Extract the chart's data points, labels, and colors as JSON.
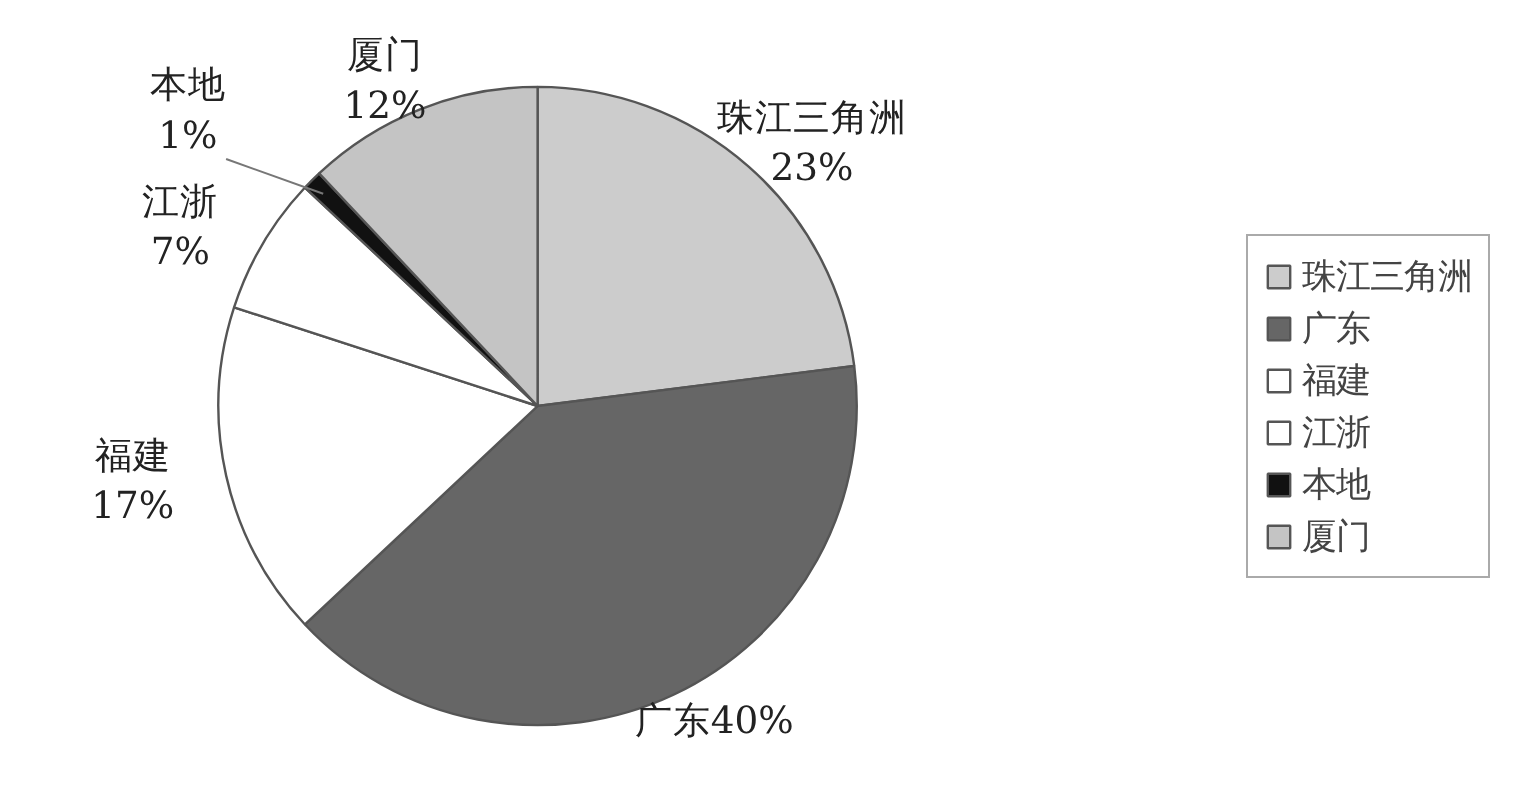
{
  "chart_data": {
    "type": "pie",
    "categories": [
      "珠江三角洲",
      "广东",
      "福建",
      "江浙",
      "本地",
      "厦门"
    ],
    "values": [
      23,
      40,
      17,
      7,
      1,
      12
    ],
    "colors": [
      "#cccccc",
      "#666666",
      "#ffffff",
      "#ffffff",
      "#111111",
      "#c4c4c4"
    ],
    "value_labels": [
      "23%",
      "40%",
      "17%",
      "7%",
      "1%",
      "12%"
    ],
    "legend": "right"
  }
}
